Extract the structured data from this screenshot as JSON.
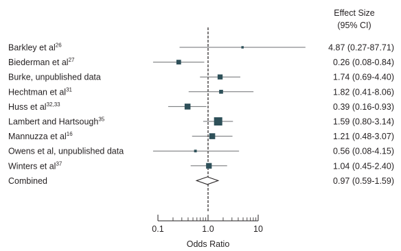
{
  "chart_data": {
    "type": "forest",
    "xscale": "log",
    "xlim": [
      0.1,
      10
    ],
    "reference_line": 1,
    "xlabel": "Odds Ratio",
    "x_ticks": [
      {
        "value": 0.1,
        "label": "0.1"
      },
      {
        "value": 1,
        "label": "1.0"
      },
      {
        "value": 10,
        "label": "10"
      }
    ],
    "column_header": [
      "Effect Size",
      "(95% CI)"
    ],
    "colors": {
      "marker": "#2e5059",
      "line": "#6b6e70",
      "text": "#231f20"
    },
    "studies": [
      {
        "name": "Barkley et al",
        "sup": "26",
        "or": 4.87,
        "lo": 0.27,
        "hi": 87.71,
        "ci_text": "4.87 (0.27-87.71)",
        "weight": 0.05
      },
      {
        "name": "Biederman et al",
        "sup": "27",
        "or": 0.26,
        "lo": 0.08,
        "hi": 0.84,
        "ci_text": "0.26 (0.08-0.84)",
        "weight": 0.42
      },
      {
        "name": "Burke, unpublished data",
        "sup": "",
        "or": 1.74,
        "lo": 0.69,
        "hi": 4.4,
        "ci_text": "1.74 (0.69-4.40)",
        "weight": 0.48
      },
      {
        "name": "Hechtman et al",
        "sup": "31",
        "or": 1.82,
        "lo": 0.41,
        "hi": 8.06,
        "ci_text": "1.82 (0.41-8.06)",
        "weight": 0.3
      },
      {
        "name": "Huss et al",
        "sup": "32,33",
        "or": 0.39,
        "lo": 0.16,
        "hi": 0.93,
        "ci_text": "0.39 (0.16-0.93)",
        "weight": 0.62
      },
      {
        "name": "Lambert and Hartsough",
        "sup": "35",
        "or": 1.59,
        "lo": 0.8,
        "hi": 3.14,
        "ci_text": "1.59 (0.80-3.14)",
        "weight": 1.0
      },
      {
        "name": "Mannuzza et al",
        "sup": "16",
        "or": 1.21,
        "lo": 0.48,
        "hi": 3.07,
        "ci_text": "1.21 (0.48-3.07)",
        "weight": 0.62
      },
      {
        "name": "Owens et al, unpublished data",
        "sup": "",
        "or": 0.56,
        "lo": 0.08,
        "hi": 4.15,
        "ci_text": "0.56 (0.08-4.15)",
        "weight": 0.1
      },
      {
        "name": "Winters et al",
        "sup": "37",
        "or": 1.04,
        "lo": 0.45,
        "hi": 2.4,
        "ci_text": "1.04 (0.45-2.40)",
        "weight": 0.58
      }
    ],
    "combined": {
      "name": "Combined",
      "or": 0.97,
      "lo": 0.59,
      "hi": 1.59,
      "ci_text": "0.97 (0.59-1.59)"
    }
  }
}
